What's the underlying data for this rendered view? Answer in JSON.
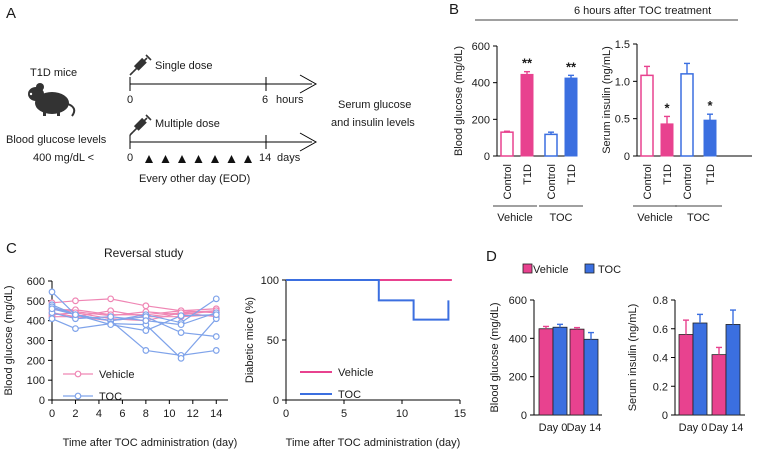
{
  "panels": {
    "A": {
      "letter": "A",
      "mice_label": "T1D mice",
      "single_dose": "Single dose",
      "multiple_dose": "Multiple dose",
      "bg_line1": "Blood glucose levels",
      "bg_line2": "400 mg/dL <",
      "t0_single": "0",
      "t_end_single": "6",
      "unit_single": "hours",
      "t0_multi": "0",
      "t_end_multi": "14",
      "unit_multi": "days",
      "eod": "Every other day (EOD)",
      "outcome_line1": "Serum glucose",
      "outcome_line2": "and insulin levels",
      "dose_marker_count": 7
    },
    "B": {
      "letter": "B",
      "header": "6 hours after TOC treatment"
    },
    "C": {
      "letter": "C",
      "title": "Reversal study"
    },
    "D": {
      "letter": "D"
    }
  },
  "colors": {
    "vehicle": "#e8428f",
    "vehicle_light": "#ef86b4",
    "toc": "#3b6fe0",
    "toc_light": "#7fa3ea",
    "black": "#000000"
  },
  "chart_data": [
    {
      "id": "B1",
      "type": "bar",
      "title": "",
      "ylabel": "Blood glucose (mg/dL)",
      "ylim": [
        0,
        600
      ],
      "yticks": [
        0,
        200,
        400,
        600
      ],
      "categories": [
        "Control",
        "T1D",
        "Control",
        "T1D"
      ],
      "groups": [
        "Vehicle",
        "TOC"
      ],
      "values": [
        130,
        445,
        118,
        425
      ],
      "errors": [
        5,
        15,
        12,
        15
      ],
      "styles": [
        "vehicle-open",
        "vehicle-filled",
        "toc-open",
        "toc-filled"
      ],
      "annotations": [
        "",
        "**",
        "",
        "**"
      ]
    },
    {
      "id": "B2",
      "type": "bar",
      "title": "",
      "ylabel": "Serum insulin (ng/mL)",
      "ylim": [
        0,
        1.5
      ],
      "yticks": [
        "0",
        "0.5",
        "1.0",
        "1.5"
      ],
      "categories": [
        "Control",
        "T1D",
        "Control",
        "T1D"
      ],
      "groups": [
        "Vehicle",
        "TOC"
      ],
      "values": [
        1.08,
        0.43,
        1.1,
        0.48
      ],
      "errors": [
        0.12,
        0.1,
        0.14,
        0.08
      ],
      "styles": [
        "vehicle-open",
        "vehicle-filled",
        "toc-open",
        "toc-filled"
      ],
      "annotations": [
        "",
        "*",
        "",
        "*"
      ]
    },
    {
      "id": "C1",
      "type": "line",
      "title": "Reversal study",
      "xlabel": "Time after TOC administration (day)",
      "ylabel": "Blood glucose (mg/dL)",
      "xlim": [
        0,
        15
      ],
      "ylim": [
        0,
        600
      ],
      "xticks": [
        0,
        2,
        4,
        6,
        8,
        10,
        12,
        14
      ],
      "yticks": [
        0,
        100,
        200,
        300,
        400,
        500,
        600
      ],
      "x": [
        0,
        2,
        5,
        8,
        11,
        14
      ],
      "legend": [
        "Vehicle",
        "TOC"
      ],
      "series": [
        {
          "name": "Vehicle",
          "values": [
            490,
            500,
            510,
            475,
            450,
            460
          ]
        },
        {
          "name": "Vehicle",
          "values": [
            460,
            445,
            425,
            445,
            430,
            450
          ]
        },
        {
          "name": "Vehicle",
          "values": [
            440,
            420,
            450,
            420,
            420,
            430
          ]
        },
        {
          "name": "Vehicle",
          "values": [
            420,
            420,
            400,
            420,
            440,
            420
          ]
        },
        {
          "name": "Vehicle",
          "values": [
            455,
            455,
            430,
            430,
            450,
            440
          ]
        },
        {
          "name": "Vehicle",
          "values": [
            430,
            440,
            410,
            400,
            440,
            450
          ]
        },
        {
          "name": "TOC",
          "values": [
            545,
            430,
            400,
            430,
            390,
            510
          ]
        },
        {
          "name": "TOC",
          "values": [
            480,
            430,
            400,
            420,
            340,
            320
          ]
        },
        {
          "name": "TOC",
          "values": [
            470,
            430,
            400,
            250,
            225,
            250
          ]
        },
        {
          "name": "TOC",
          "values": [
            410,
            360,
            385,
            380,
            210,
            410
          ]
        },
        {
          "name": "TOC",
          "values": [
            440,
            410,
            420,
            400,
            380,
            440
          ]
        },
        {
          "name": "TOC",
          "values": [
            460,
            430,
            380,
            350,
            425,
            430
          ]
        }
      ]
    },
    {
      "id": "C2",
      "type": "line",
      "title": "",
      "xlabel": "Time after TOC administration (day)",
      "ylabel": "Diabetic mice (%)",
      "xlim": [
        0,
        15
      ],
      "ylim": [
        0,
        100
      ],
      "xticks": [
        0,
        5,
        10,
        15
      ],
      "yticks": [
        0,
        50,
        100
      ],
      "legend": [
        "Vehicle",
        "TOC"
      ],
      "series": [
        {
          "name": "Vehicle",
          "x": [
            0,
            14.3
          ],
          "values": [
            100,
            100
          ]
        },
        {
          "name": "TOC",
          "x": [
            0,
            8,
            8,
            11,
            11,
            14,
            14
          ],
          "values": [
            100,
            100,
            83,
            83,
            67,
            67,
            83
          ]
        }
      ]
    },
    {
      "id": "D1",
      "type": "bar",
      "title": "",
      "ylabel": "Blood glucose (mg/dL)",
      "ylim": [
        0,
        600
      ],
      "yticks": [
        0,
        200,
        400,
        600
      ],
      "categories": [
        "Day 0",
        "Day 14"
      ],
      "legend": [
        "Vehicle",
        "TOC"
      ],
      "series": [
        {
          "name": "Vehicle",
          "values": [
            450,
            448
          ],
          "errors": [
            12,
            8
          ]
        },
        {
          "name": "TOC",
          "values": [
            458,
            395
          ],
          "errors": [
            15,
            35
          ]
        }
      ]
    },
    {
      "id": "D2",
      "type": "bar",
      "title": "",
      "ylabel": "Serum insulin (ng/mL)",
      "ylim": [
        0,
        0.8
      ],
      "yticks": [
        "0",
        "0.2",
        "0.4",
        "0.6",
        "0.8"
      ],
      "categories": [
        "Day 0",
        "Day 14"
      ],
      "legend": [
        "Vehicle",
        "TOC"
      ],
      "series": [
        {
          "name": "Vehicle",
          "values": [
            0.56,
            0.42
          ],
          "errors": [
            0.1,
            0.05
          ]
        },
        {
          "name": "TOC",
          "values": [
            0.64,
            0.63
          ],
          "errors": [
            0.06,
            0.1
          ]
        }
      ]
    }
  ]
}
